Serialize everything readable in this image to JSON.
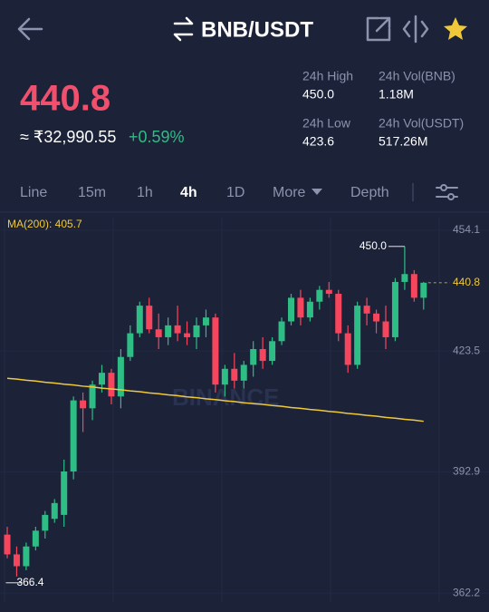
{
  "header": {
    "pair": "BNB/USDT"
  },
  "price": {
    "last": "440.8",
    "approx": "≈ ₹32,990.55",
    "change": "+0.59%"
  },
  "stats": [
    {
      "label": "24h High",
      "value": "450.0"
    },
    {
      "label": "24h Vol(BNB)",
      "value": "1.18M"
    },
    {
      "label": "24h Low",
      "value": "423.6"
    },
    {
      "label": "24h Vol(USDT)",
      "value": "517.26M"
    }
  ],
  "tabs": [
    "Line",
    "15m",
    "1h",
    "4h",
    "1D",
    "More",
    "Depth"
  ],
  "chart_data": {
    "type": "candlestick",
    "watermark": "BINANCE",
    "up_color": "#2ebd85",
    "down_color": "#f6465d",
    "open": [
      377,
      372,
      369,
      374,
      378,
      381,
      382,
      393,
      411,
      409,
      415,
      418,
      412,
      422,
      428,
      435,
      429,
      427,
      430,
      428,
      427,
      430,
      432,
      415,
      419,
      416,
      420,
      424,
      421,
      426,
      431,
      437,
      432,
      436,
      439,
      438,
      428,
      420,
      435,
      433,
      431,
      427,
      441,
      443,
      437
    ],
    "high": [
      379,
      374,
      375,
      379,
      383,
      386,
      396,
      412,
      413,
      416,
      420,
      419,
      424,
      430,
      436,
      437,
      433,
      432,
      435,
      431,
      432,
      434,
      433,
      420,
      423,
      421,
      426,
      427,
      427,
      432,
      438,
      439,
      437,
      440,
      441,
      439,
      430,
      436,
      437,
      434,
      435,
      442,
      450,
      444,
      441
    ],
    "low": [
      371,
      366.4,
      368,
      373,
      376,
      380,
      379,
      391,
      403,
      406,
      413,
      410,
      409,
      421,
      427,
      428,
      424,
      425,
      426,
      425,
      424,
      427,
      413,
      412,
      414,
      414,
      417,
      419,
      420,
      425,
      430,
      430,
      431,
      434,
      437,
      426,
      418,
      419,
      430,
      428,
      424,
      426,
      439,
      436,
      434
    ],
    "close": [
      372,
      369,
      374,
      378,
      382,
      385,
      393,
      411,
      409,
      415,
      418,
      412,
      422,
      428,
      435,
      429,
      427,
      430,
      428,
      427,
      430,
      432,
      415,
      419,
      416,
      420,
      424,
      421,
      426,
      431,
      437,
      432,
      436,
      439,
      438,
      428,
      420,
      435,
      433,
      431,
      427,
      441,
      443,
      437,
      440.8
    ],
    "series": [
      {
        "name": "MA(200): 405.7",
        "color": "#f0c93a",
        "values": [
          416.6,
          416.4,
          416.1,
          415.9,
          415.6,
          415.4,
          415.1,
          414.9,
          414.6,
          414.4,
          414.1,
          413.9,
          413.7,
          413.4,
          413.2,
          412.9,
          412.7,
          412.4,
          412.2,
          411.9,
          411.7,
          411.4,
          411.2,
          410.9,
          410.7,
          410.4,
          410.2,
          410.0,
          409.7,
          409.5,
          409.2,
          409.0,
          408.7,
          408.5,
          408.2,
          408.0,
          407.7,
          407.5,
          407.2,
          407.0,
          406.7,
          406.5,
          406.2,
          406.0,
          405.7
        ]
      }
    ],
    "annotations": {
      "high": {
        "index": 42,
        "value": 450,
        "label": "450.0"
      },
      "low": {
        "index": 1,
        "value": 366.4,
        "label": "366.4"
      },
      "last": {
        "value": 440.8,
        "label": "440.8",
        "color": "#f0c93a"
      }
    },
    "ylim": [
      359.7,
      457.3
    ],
    "yticks": [
      454.1,
      423.5,
      392.9,
      362.2
    ]
  }
}
